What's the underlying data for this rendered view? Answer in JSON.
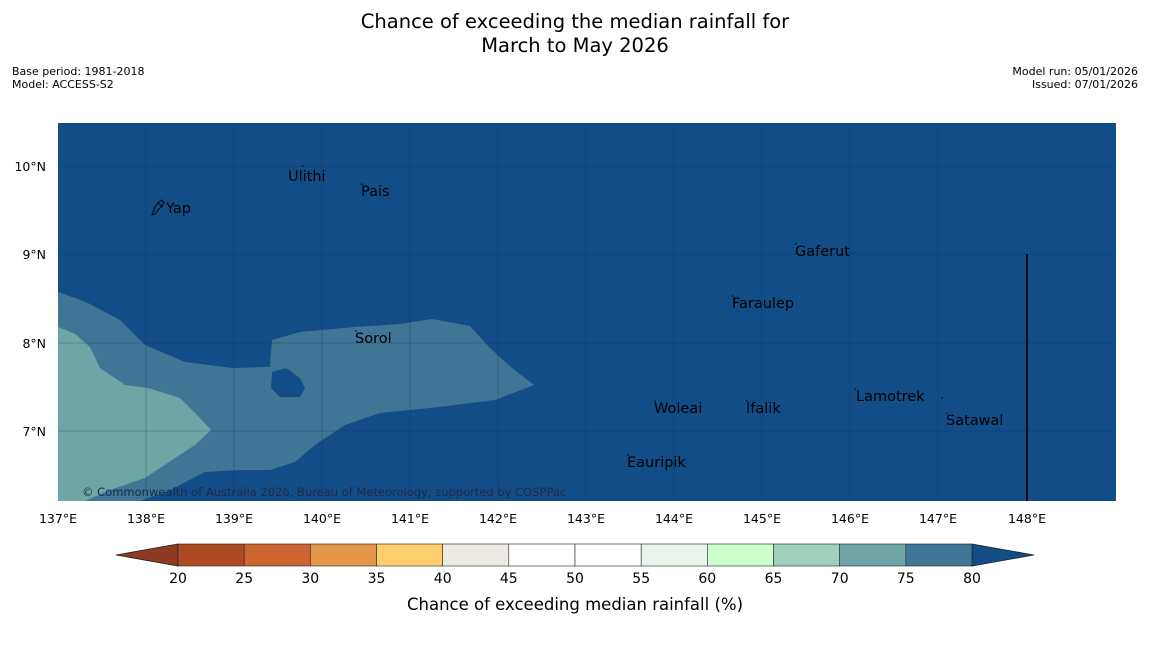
{
  "title": {
    "line1": "Chance of exceeding the median rainfall for",
    "line2": "March to May 2026"
  },
  "meta": {
    "base_period": "Base period: 1981-2018",
    "model": "Model: ACCESS-S2",
    "model_run": "Model run: 05/01/2026",
    "issued": "Issued: 07/01/2026"
  },
  "map": {
    "lat_labels": [
      "10°N",
      "9°N",
      "8°N",
      "7°N"
    ],
    "lon_labels": [
      "137°E",
      "138°E",
      "139°E",
      "140°E",
      "141°E",
      "142°E",
      "143°E",
      "144°E",
      "145°E",
      "146°E",
      "147°E",
      "148°E"
    ],
    "places": [
      "Ulithi",
      "Pais",
      "Yap",
      "Gaferut",
      "Faraulep",
      "Sorol",
      "Lamotrek",
      "Woleai",
      "Ifalik",
      "Satawal",
      "Eauripik"
    ],
    "copyright": "© Commonwealth of Australia 2026, Bureau of Meteorology, supported by COSPPac"
  },
  "legend": {
    "title": "Chance of exceeding median rainfall (%)",
    "ticks": [
      "20",
      "25",
      "30",
      "35",
      "40",
      "45",
      "50",
      "55",
      "60",
      "65",
      "70",
      "75",
      "80"
    ],
    "colors": [
      "#ad4a24",
      "#cc6530",
      "#e39549",
      "#fdcf6c",
      "#ede9e3",
      "#ffffff",
      "#ffffff",
      "#ebf4eb",
      "#ccffcc",
      "#9ed1bb",
      "#6fa6a5",
      "#3f7695"
    ],
    "low_color": "#8f3a22",
    "high_color": "#134d88"
  },
  "colors": {
    "ocean_high": "#134d88",
    "band_75": "#3f7695",
    "band_70": "#6fa6a5"
  }
}
